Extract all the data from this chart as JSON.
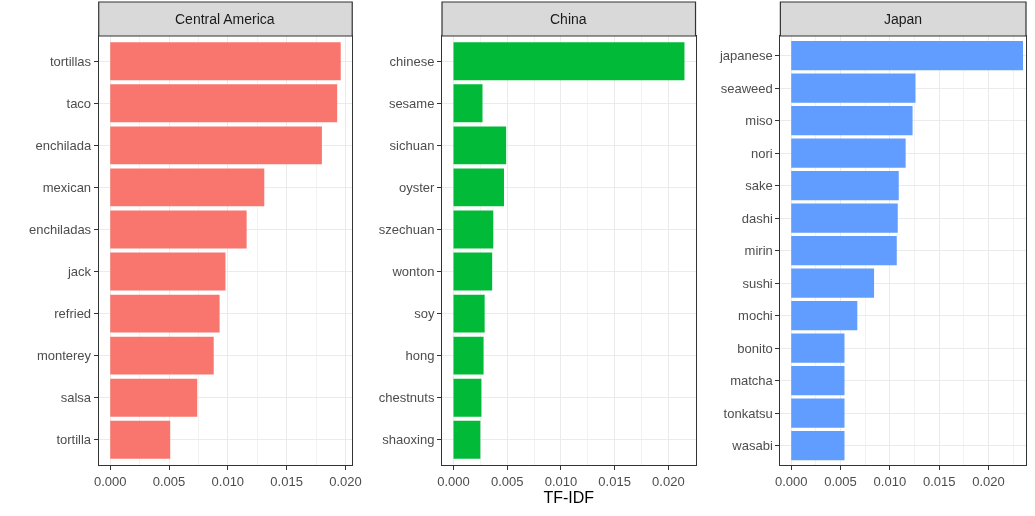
{
  "chart_data": [
    {
      "type": "bar",
      "orientation": "horizontal",
      "title": "Central America",
      "grid": true,
      "categories": [
        "tortillas",
        "taco",
        "enchilada",
        "mexican",
        "enchiladas",
        "jack",
        "refried",
        "monterey",
        "salsa",
        "tortilla"
      ],
      "values": [
        0.0196,
        0.0193,
        0.018,
        0.0131,
        0.0116,
        0.0098,
        0.0093,
        0.0088,
        0.0074,
        0.0051
      ],
      "color": "#f8766d",
      "xlim": [
        -0.00098,
        0.02058
      ],
      "xticks": [
        {
          "value": 0,
          "label": "0.000"
        },
        {
          "value": 0.005,
          "label": "0.005"
        },
        {
          "value": 0.01,
          "label": "0.010"
        },
        {
          "value": 0.015,
          "label": "0.015"
        },
        {
          "value": 0.02,
          "label": "0.020"
        }
      ]
    },
    {
      "type": "bar",
      "orientation": "horizontal",
      "title": "China",
      "xlabel": "TF-IDF",
      "grid": true,
      "categories": [
        "chinese",
        "sesame",
        "sichuan",
        "oyster",
        "szechuan",
        "wonton",
        "soy",
        "hong",
        "chestnuts",
        "shaoxing"
      ],
      "values": [
        0.0215,
        0.0027,
        0.0049,
        0.0047,
        0.0037,
        0.0036,
        0.0029,
        0.0028,
        0.0026,
        0.0025
      ],
      "color": "#00ba38",
      "xlim": [
        -0.00107,
        0.02253
      ],
      "xticks": [
        {
          "value": 0,
          "label": "0.000"
        },
        {
          "value": 0.005,
          "label": "0.005"
        },
        {
          "value": 0.01,
          "label": "0.010"
        },
        {
          "value": 0.015,
          "label": "0.015"
        },
        {
          "value": 0.02,
          "label": "0.020"
        }
      ]
    },
    {
      "type": "bar",
      "orientation": "horizontal",
      "title": "Japan",
      "grid": true,
      "categories": [
        "japanese",
        "seaweed",
        "miso",
        "nori",
        "sake",
        "dashi",
        "mirin",
        "sushi",
        "mochi",
        "bonito",
        "matcha",
        "tonkatsu",
        "wasabi"
      ],
      "values": [
        0.0235,
        0.0126,
        0.0123,
        0.0116,
        0.0109,
        0.0108,
        0.0107,
        0.0084,
        0.0067,
        0.0054,
        0.0054,
        0.0054,
        0.0054
      ],
      "color": "#619cff",
      "xlim": [
        -0.0011,
        0.0238
      ],
      "xticks": [
        {
          "value": 0,
          "label": "0.000"
        },
        {
          "value": 0.005,
          "label": "0.005"
        },
        {
          "value": 0.01,
          "label": "0.010"
        },
        {
          "value": 0.015,
          "label": "0.015"
        },
        {
          "value": 0.02,
          "label": "0.020"
        }
      ]
    }
  ]
}
